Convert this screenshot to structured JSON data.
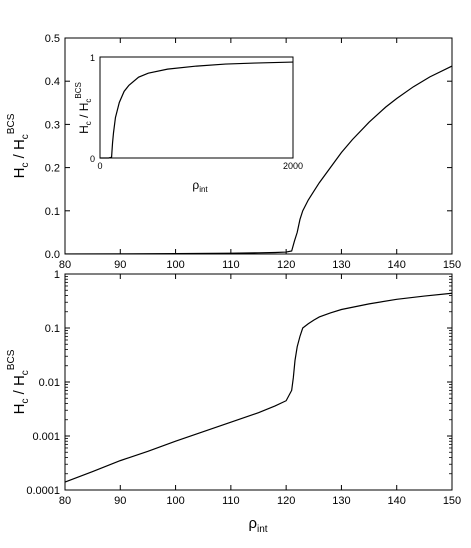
{
  "chart_data": [
    {
      "type": "line",
      "title": "",
      "scale": "linear",
      "xlim": [
        80,
        150
      ],
      "ylim": [
        0,
        0.5
      ],
      "xticks": [
        "80",
        "90",
        "100",
        "110",
        "120",
        "130",
        "140",
        "150"
      ],
      "yticks": [
        "0.0",
        "0.1",
        "0.2",
        "0.3",
        "0.4",
        "0.5"
      ],
      "ylabel": {
        "main": "H",
        "sub1": "c",
        "slash": " / H",
        "sub2": "c",
        "sup": "BCS"
      },
      "x": [
        80,
        90,
        100,
        110,
        115,
        118,
        120,
        121,
        121.5,
        122,
        122.5,
        123,
        124,
        125,
        126,
        128,
        130,
        132,
        135,
        138,
        140,
        143,
        146,
        150
      ],
      "y": [
        0.0001,
        0.0003,
        0.0008,
        0.0018,
        0.0028,
        0.0035,
        0.0045,
        0.007,
        0.03,
        0.05,
        0.08,
        0.1,
        0.125,
        0.145,
        0.165,
        0.2,
        0.235,
        0.265,
        0.305,
        0.34,
        0.36,
        0.387,
        0.41,
        0.435
      ]
    },
    {
      "type": "line",
      "inset": true,
      "xlim": [
        0,
        2000
      ],
      "ylim": [
        0,
        1
      ],
      "xticks": [
        "0",
        "2000"
      ],
      "yticks": [
        "0",
        "1"
      ],
      "xlabel": {
        "main": "ρ",
        "sub": "int"
      },
      "ylabel": {
        "main": "H",
        "sub1": "c",
        "slash": " / H",
        "sub2": "c",
        "sup": "BCS"
      },
      "x": [
        0,
        90,
        100,
        110,
        120,
        125,
        130,
        140,
        160,
        200,
        250,
        300,
        400,
        500,
        700,
        1000,
        1300,
        1600,
        2000
      ],
      "y": [
        0,
        0,
        0.003,
        0.005,
        0.008,
        0.08,
        0.15,
        0.25,
        0.4,
        0.55,
        0.66,
        0.72,
        0.8,
        0.84,
        0.88,
        0.91,
        0.93,
        0.94,
        0.95
      ]
    },
    {
      "type": "line",
      "scale": "log",
      "xlim": [
        80,
        150
      ],
      "ylim": [
        0.0001,
        1
      ],
      "xticks": [
        "80",
        "90",
        "100",
        "110",
        "120",
        "130",
        "140",
        "150"
      ],
      "yticks": [
        "0.0001",
        "0.001",
        "0.01",
        "0.1",
        "1"
      ],
      "xlabel": {
        "main": "ρ",
        "sub": "int"
      },
      "ylabel": {
        "main": "H",
        "sub1": "c",
        "slash": " / H",
        "sub2": "c",
        "sup": "BCS"
      },
      "x": [
        80,
        85,
        90,
        95,
        100,
        105,
        110,
        115,
        118,
        120,
        121,
        121.3,
        121.6,
        122,
        122.5,
        123,
        124,
        125,
        126,
        128,
        130,
        135,
        140,
        145,
        150
      ],
      "y": [
        0.00014,
        0.00022,
        0.00035,
        0.00052,
        0.0008,
        0.0012,
        0.0018,
        0.0027,
        0.0036,
        0.0045,
        0.007,
        0.012,
        0.025,
        0.045,
        0.07,
        0.1,
        0.12,
        0.14,
        0.16,
        0.19,
        0.22,
        0.28,
        0.34,
        0.39,
        0.44
      ]
    }
  ]
}
